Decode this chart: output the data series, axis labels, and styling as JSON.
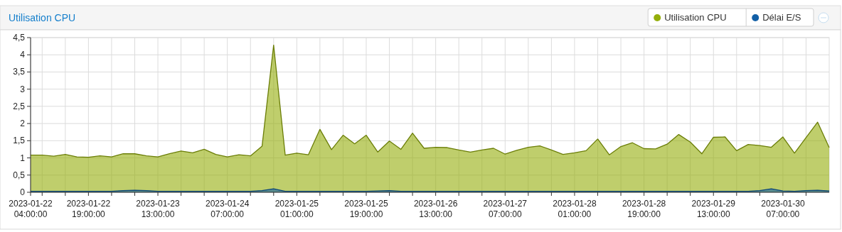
{
  "chart_data": {
    "type": "area",
    "title": "Utilisation CPU",
    "x": [
      "2023-01-22T04:00",
      "2023-01-22T07:00",
      "2023-01-22T10:00",
      "2023-01-22T13:00",
      "2023-01-22T16:00",
      "2023-01-22T19:00",
      "2023-01-22T22:00",
      "2023-01-23T01:00",
      "2023-01-23T04:00",
      "2023-01-23T07:00",
      "2023-01-23T10:00",
      "2023-01-23T13:00",
      "2023-01-23T16:00",
      "2023-01-23T19:00",
      "2023-01-23T22:00",
      "2023-01-24T01:00",
      "2023-01-24T04:00",
      "2023-01-24T07:00",
      "2023-01-24T10:00",
      "2023-01-24T13:00",
      "2023-01-24T16:00",
      "2023-01-24T19:00",
      "2023-01-24T22:00",
      "2023-01-25T01:00",
      "2023-01-25T04:00",
      "2023-01-25T07:00",
      "2023-01-25T10:00",
      "2023-01-25T13:00",
      "2023-01-25T16:00",
      "2023-01-25T19:00",
      "2023-01-25T22:00",
      "2023-01-26T01:00",
      "2023-01-26T04:00",
      "2023-01-26T07:00",
      "2023-01-26T10:00",
      "2023-01-26T13:00",
      "2023-01-26T16:00",
      "2023-01-26T19:00",
      "2023-01-26T22:00",
      "2023-01-27T01:00",
      "2023-01-27T04:00",
      "2023-01-27T07:00",
      "2023-01-27T10:00",
      "2023-01-27T13:00",
      "2023-01-27T16:00",
      "2023-01-27T19:00",
      "2023-01-27T22:00",
      "2023-01-28T01:00",
      "2023-01-28T04:00",
      "2023-01-28T07:00",
      "2023-01-28T10:00",
      "2023-01-28T13:00",
      "2023-01-28T16:00",
      "2023-01-28T19:00",
      "2023-01-28T22:00",
      "2023-01-29T01:00",
      "2023-01-29T04:00",
      "2023-01-29T07:00",
      "2023-01-29T10:00",
      "2023-01-29T13:00",
      "2023-01-29T16:00",
      "2023-01-29T19:00",
      "2023-01-29T22:00",
      "2023-01-30T01:00",
      "2023-01-30T04:00",
      "2023-01-30T07:00",
      "2023-01-30T10:00",
      "2023-01-30T13:00",
      "2023-01-30T16:00",
      "2023-01-30T19:00"
    ],
    "series": [
      {
        "name": "Utilisation CPU",
        "color": "#94ae0a",
        "values": [
          1.08,
          1.08,
          1.05,
          1.1,
          1.03,
          1.02,
          1.06,
          1.03,
          1.12,
          1.12,
          1.06,
          1.03,
          1.12,
          1.2,
          1.15,
          1.25,
          1.1,
          1.03,
          1.09,
          1.06,
          1.34,
          4.28,
          1.08,
          1.14,
          1.09,
          1.83,
          1.24,
          1.66,
          1.41,
          1.66,
          1.17,
          1.49,
          1.25,
          1.72,
          1.28,
          1.31,
          1.3,
          1.23,
          1.17,
          1.23,
          1.28,
          1.11,
          1.22,
          1.31,
          1.35,
          1.23,
          1.1,
          1.15,
          1.21,
          1.55,
          1.09,
          1.33,
          1.44,
          1.27,
          1.26,
          1.4,
          1.68,
          1.46,
          1.12,
          1.6,
          1.61,
          1.21,
          1.39,
          1.36,
          1.31,
          1.61,
          1.14,
          1.59,
          2.04,
          1.3
        ]
      },
      {
        "name": "Délai E/S",
        "color": "#115fa6",
        "values": [
          0.03,
          0.03,
          0.03,
          0.03,
          0.03,
          0.03,
          0.03,
          0.03,
          0.05,
          0.06,
          0.05,
          0.03,
          0.03,
          0.03,
          0.03,
          0.03,
          0.03,
          0.03,
          0.03,
          0.03,
          0.05,
          0.1,
          0.03,
          0.03,
          0.03,
          0.03,
          0.03,
          0.03,
          0.03,
          0.03,
          0.04,
          0.05,
          0.03,
          0.03,
          0.03,
          0.03,
          0.03,
          0.03,
          0.03,
          0.03,
          0.03,
          0.03,
          0.03,
          0.03,
          0.03,
          0.03,
          0.03,
          0.03,
          0.03,
          0.03,
          0.03,
          0.03,
          0.03,
          0.03,
          0.03,
          0.03,
          0.03,
          0.03,
          0.03,
          0.03,
          0.03,
          0.03,
          0.03,
          0.05,
          0.1,
          0.04,
          0.03,
          0.05,
          0.06,
          0.04
        ]
      }
    ],
    "xlim": [
      "2023-01-22T04:00",
      "2023-01-30T19:00"
    ],
    "xticks": [
      {
        "value": "2023-01-22T04:00",
        "label": "2023-01-22 04:00:00"
      },
      {
        "value": "2023-01-22T07:00",
        "label": null
      },
      {
        "value": "2023-01-22T13:00",
        "label": null
      },
      {
        "value": "2023-01-22T19:00",
        "label": "2023-01-22 19:00:00"
      },
      {
        "value": "2023-01-23T01:00",
        "label": null
      },
      {
        "value": "2023-01-23T07:00",
        "label": null
      },
      {
        "value": "2023-01-23T13:00",
        "label": "2023-01-23 13:00:00"
      },
      {
        "value": "2023-01-23T19:00",
        "label": null
      },
      {
        "value": "2023-01-24T01:00",
        "label": null
      },
      {
        "value": "2023-01-24T07:00",
        "label": "2023-01-24 07:00:00"
      },
      {
        "value": "2023-01-24T13:00",
        "label": null
      },
      {
        "value": "2023-01-24T19:00",
        "label": null
      },
      {
        "value": "2023-01-25T01:00",
        "label": "2023-01-25 01:00:00"
      },
      {
        "value": "2023-01-25T07:00",
        "label": null
      },
      {
        "value": "2023-01-25T13:00",
        "label": null
      },
      {
        "value": "2023-01-25T19:00",
        "label": "2023-01-25 19:00:00"
      },
      {
        "value": "2023-01-26T01:00",
        "label": null
      },
      {
        "value": "2023-01-26T07:00",
        "label": null
      },
      {
        "value": "2023-01-26T13:00",
        "label": "2023-01-26 13:00:00"
      },
      {
        "value": "2023-01-26T19:00",
        "label": null
      },
      {
        "value": "2023-01-27T01:00",
        "label": null
      },
      {
        "value": "2023-01-27T07:00",
        "label": "2023-01-27 07:00:00"
      },
      {
        "value": "2023-01-27T13:00",
        "label": null
      },
      {
        "value": "2023-01-27T19:00",
        "label": null
      },
      {
        "value": "2023-01-28T01:00",
        "label": "2023-01-28 01:00:00"
      },
      {
        "value": "2023-01-28T07:00",
        "label": null
      },
      {
        "value": "2023-01-28T13:00",
        "label": null
      },
      {
        "value": "2023-01-28T19:00",
        "label": "2023-01-28 19:00:00"
      },
      {
        "value": "2023-01-29T01:00",
        "label": null
      },
      {
        "value": "2023-01-29T07:00",
        "label": null
      },
      {
        "value": "2023-01-29T13:00",
        "label": "2023-01-29 13:00:00"
      },
      {
        "value": "2023-01-29T19:00",
        "label": null
      },
      {
        "value": "2023-01-30T01:00",
        "label": null
      },
      {
        "value": "2023-01-30T07:00",
        "label": "2023-01-30 07:00:00"
      },
      {
        "value": "2023-01-30T13:00",
        "label": null
      }
    ],
    "ylim": [
      0,
      4.5
    ],
    "yticks": [
      0,
      {
        "value": 0.5,
        "label": "0,5"
      },
      1,
      {
        "value": 1.5,
        "label": "1,5"
      },
      2,
      {
        "value": 2.5,
        "label": "2,5"
      },
      3,
      {
        "value": 3.5,
        "label": "3,5"
      },
      4,
      {
        "value": 4.5,
        "label": "4,5"
      }
    ],
    "grid": true,
    "legend": "top right"
  }
}
